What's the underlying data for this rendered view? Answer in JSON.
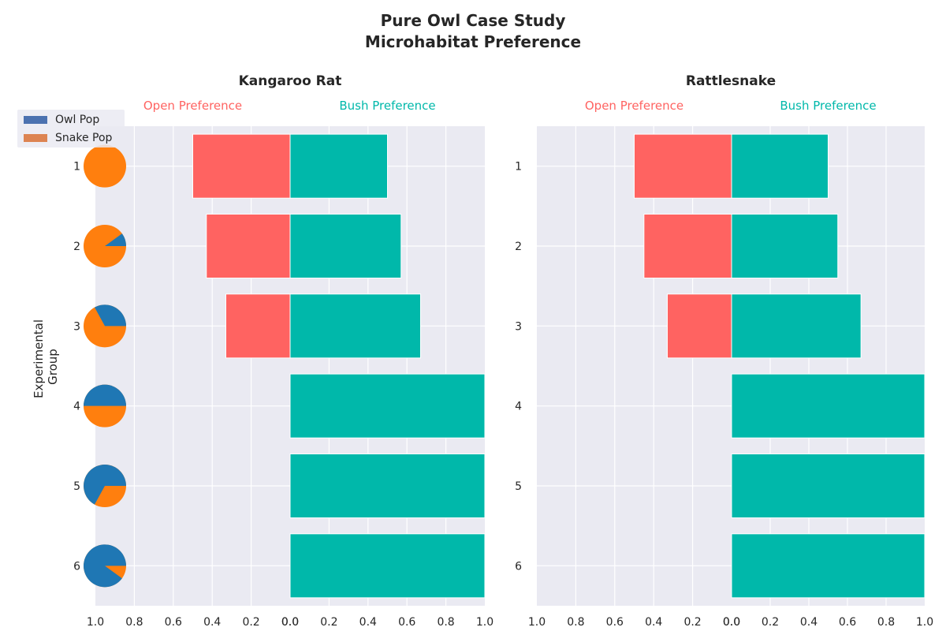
{
  "title_line1": "Pure Owl Case Study",
  "title_line2": "Microhabitat Preference",
  "y_axis_label_line1": "Experimental",
  "y_axis_label_line2": "Group",
  "legend": {
    "entries": [
      {
        "label": "Owl Pop",
        "color": "#4c72b0"
      },
      {
        "label": "Snake Pop",
        "color": "#dd8452"
      }
    ]
  },
  "colors": {
    "open": "#ff6361",
    "bush": "#00b8aa",
    "panel_bg": "#eaeaf2",
    "grid": "#ffffff",
    "pie_owl": "#1f77b4",
    "pie_snake": "#ff7f0e"
  },
  "chart_data": [
    {
      "type": "bar",
      "orientation": "horizontal-diverging",
      "title": "Kangaroo Rat",
      "open_label": "Open Preference",
      "bush_label": "Bush Preference",
      "categories": [
        "1",
        "2",
        "3",
        "4",
        "5",
        "6"
      ],
      "series": [
        {
          "name": "Open Preference",
          "values": [
            0.5,
            0.43,
            0.33,
            0.0,
            0.0,
            0.0
          ]
        },
        {
          "name": "Bush Preference",
          "values": [
            0.5,
            0.57,
            0.67,
            1.0,
            1.0,
            1.0
          ]
        }
      ],
      "xlim_left": [
        1.0,
        0.0
      ],
      "xlim_right": [
        0.0,
        1.0
      ],
      "ticks_left": [
        "1.0",
        "0.8",
        "0.6",
        "0.4",
        "0.2",
        "0.0"
      ],
      "ticks_right": [
        "0.0",
        "0.2",
        "0.4",
        "0.6",
        "0.8",
        "1.0"
      ],
      "grid": true
    },
    {
      "type": "bar",
      "orientation": "horizontal-diverging",
      "title": "Rattlesnake",
      "open_label": "Open Preference",
      "bush_label": "Bush Preference",
      "categories": [
        "1",
        "2",
        "3",
        "4",
        "5",
        "6"
      ],
      "series": [
        {
          "name": "Open Preference",
          "values": [
            0.5,
            0.45,
            0.33,
            0.0,
            0.0,
            0.0
          ]
        },
        {
          "name": "Bush Preference",
          "values": [
            0.5,
            0.55,
            0.67,
            1.0,
            1.0,
            1.0
          ]
        }
      ],
      "xlim_left": [
        1.0,
        0.0
      ],
      "xlim_right": [
        0.0,
        1.0
      ],
      "ticks_left": [
        "1.0",
        "0.8",
        "0.6",
        "0.4",
        "0.2",
        "0.0"
      ],
      "ticks_right": [
        "0.0",
        "0.2",
        "0.4",
        "0.6",
        "0.8",
        "1.0"
      ],
      "grid": true
    }
  ],
  "pie_data": {
    "type": "pie",
    "legend_ref": [
      "Owl Pop",
      "Snake Pop"
    ],
    "groups": [
      {
        "group": "1",
        "owl_fraction": 0.0
      },
      {
        "group": "2",
        "owl_fraction": 0.1
      },
      {
        "group": "3",
        "owl_fraction": 0.33
      },
      {
        "group": "4",
        "owl_fraction": 0.5
      },
      {
        "group": "5",
        "owl_fraction": 0.67
      },
      {
        "group": "6",
        "owl_fraction": 0.9
      }
    ]
  }
}
